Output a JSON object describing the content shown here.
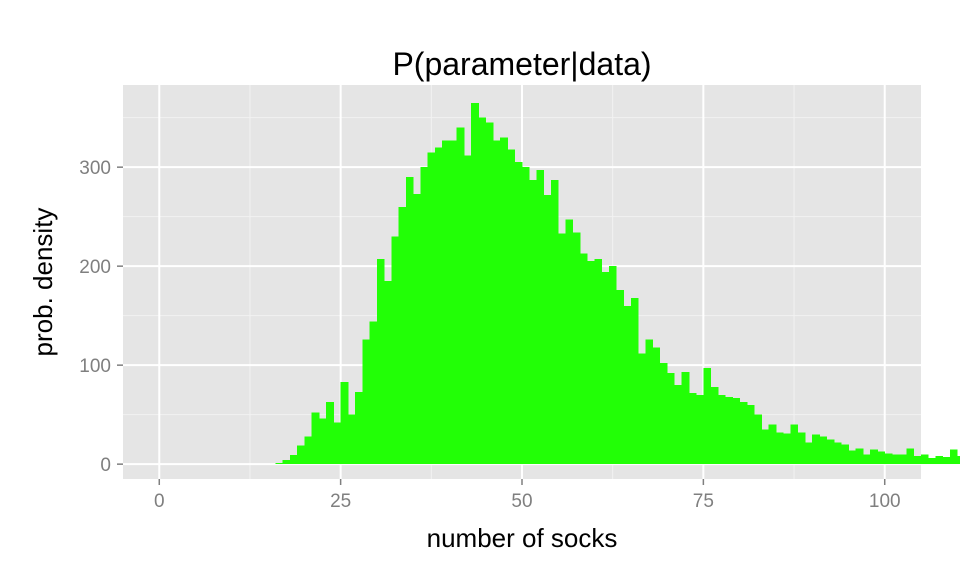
{
  "chart_data": {
    "type": "bar",
    "title": "P(parameter|data)",
    "xlabel": "number of socks",
    "ylabel": "prob. density",
    "xlim": [
      -5,
      105
    ],
    "ylim": [
      -15,
      383
    ],
    "x_ticks": [
      {
        "value": 0,
        "label": "0"
      },
      {
        "value": 25,
        "label": "25"
      },
      {
        "value": 50,
        "label": "50"
      },
      {
        "value": 75,
        "label": "75"
      },
      {
        "value": 100,
        "label": "100"
      }
    ],
    "y_ticks": [
      {
        "value": 0,
        "label": "0"
      },
      {
        "value": 100,
        "label": "100"
      },
      {
        "value": 200,
        "label": "200"
      },
      {
        "value": 300,
        "label": "300"
      }
    ],
    "grid": true,
    "legend": "none",
    "bin_width": 1,
    "bin_start": 16,
    "values": [
      1,
      4,
      9,
      19,
      28,
      52,
      46,
      63,
      42,
      83,
      50,
      73,
      126,
      144,
      207,
      185,
      230,
      260,
      290,
      273,
      300,
      315,
      320,
      327,
      327,
      340,
      312,
      365,
      350,
      345,
      327,
      330,
      318,
      305,
      300,
      287,
      297,
      272,
      287,
      233,
      247,
      234,
      213,
      205,
      207,
      194,
      200,
      176,
      160,
      168,
      112,
      126,
      118,
      102,
      92,
      80,
      93,
      72,
      70,
      97,
      78,
      70,
      68,
      67,
      63,
      60,
      50,
      35,
      40,
      32,
      31,
      40,
      32,
      22,
      30,
      28,
      25,
      22,
      20,
      14,
      16,
      10,
      15,
      13,
      11,
      10,
      10,
      16,
      8,
      10,
      6,
      8,
      7,
      15,
      8,
      5,
      6,
      4,
      8
    ]
  },
  "colors": {
    "panel_bg": "#e5e5e5",
    "grid_major": "#ffffff",
    "grid_minor": "#f2f2f2",
    "bar_fill": "#22ff06",
    "tick_label": "#7f7f7f",
    "tick_mark": "#7f7f7f"
  }
}
